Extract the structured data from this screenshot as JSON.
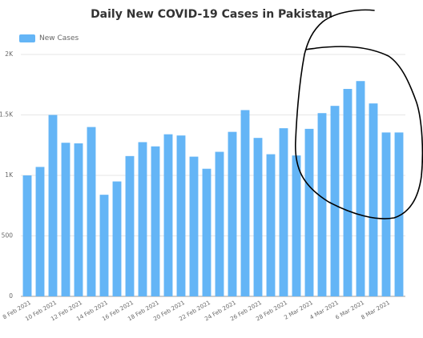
{
  "chart_data": {
    "type": "bar",
    "title": "Daily New COVID-19 Cases in Pakistan",
    "xlabel": "",
    "ylabel": "",
    "ylim": [
      0,
      2000
    ],
    "yticks": [
      0,
      500,
      1000,
      1500,
      2000
    ],
    "ytick_labels": [
      "0",
      "500",
      "1K",
      "1.5K",
      "2K"
    ],
    "legend": "top-left",
    "grid": true,
    "bar_color": "#64b5f6",
    "annotation_color": "#000000",
    "categories": [
      "8 Feb 2021",
      "9 Feb 2021",
      "10 Feb 2021",
      "11 Feb 2021",
      "12 Feb 2021",
      "13 Feb 2021",
      "14 Feb 2021",
      "15 Feb 2021",
      "16 Feb 2021",
      "17 Feb 2021",
      "18 Feb 2021",
      "19 Feb 2021",
      "20 Feb 2021",
      "21 Feb 2021",
      "22 Feb 2021",
      "23 Feb 2021",
      "24 Feb 2021",
      "25 Feb 2021",
      "26 Feb 2021",
      "27 Feb 2021",
      "28 Feb 2021",
      "1 Mar 2021",
      "2 Mar 2021",
      "3 Mar 2021",
      "4 Mar 2021",
      "5 Mar 2021",
      "6 Mar 2021",
      "7 Mar 2021",
      "8 Mar 2021",
      "9 Mar 2021"
    ],
    "xtick_labels": [
      "8 Feb 2021",
      "",
      "10 Feb 2021",
      "",
      "12 Feb 2021",
      "",
      "14 Feb 2021",
      "",
      "16 Feb 2021",
      "",
      "18 Feb 2021",
      "",
      "20 Feb 2021",
      "",
      "22 Feb 2021",
      "",
      "24 Feb 2021",
      "",
      "26 Feb 2021",
      "",
      "28 Feb 2021",
      "",
      "2 Mar 2021",
      "",
      "4 Mar 2021",
      "",
      "6 Mar 2021",
      "",
      "8 Mar 2021",
      ""
    ],
    "series": [
      {
        "name": "New Cases",
        "values": [
          1000,
          1070,
          1500,
          1270,
          1265,
          1400,
          840,
          950,
          1160,
          1275,
          1240,
          1340,
          1330,
          1155,
          1055,
          1195,
          1360,
          1540,
          1310,
          1175,
          1390,
          1165,
          1385,
          1515,
          1575,
          1715,
          1780,
          1595,
          1355,
          1355
        ]
      }
    ]
  }
}
